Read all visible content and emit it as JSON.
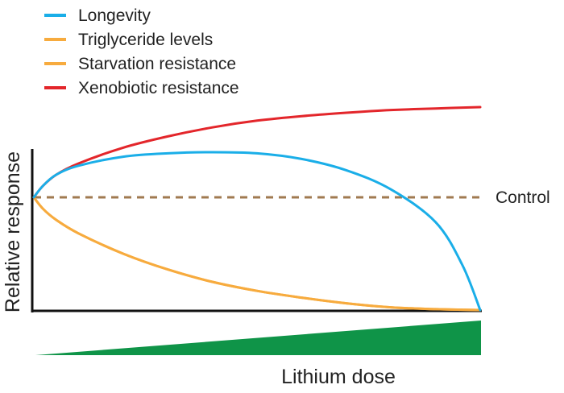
{
  "chart_data": {
    "type": "line",
    "title": "",
    "xlabel": "Lithium dose",
    "ylabel": "Relative response",
    "xlim": [
      0,
      1
    ],
    "ylim": [
      0,
      1
    ],
    "grid": false,
    "legend_position": "top-left",
    "reference_line": {
      "label": "Control",
      "y": 0.5,
      "color": "#a07a50"
    },
    "dose_wedge_color": "#0f9448",
    "series": [
      {
        "name": "Longevity",
        "color": "#1aaee8",
        "points": [
          [
            0,
            0.5
          ],
          [
            0.02,
            0.55
          ],
          [
            0.05,
            0.6
          ],
          [
            0.1,
            0.64
          ],
          [
            0.2,
            0.68
          ],
          [
            0.3,
            0.695
          ],
          [
            0.4,
            0.7
          ],
          [
            0.5,
            0.695
          ],
          [
            0.6,
            0.67
          ],
          [
            0.7,
            0.62
          ],
          [
            0.8,
            0.535
          ],
          [
            0.9,
            0.39
          ],
          [
            0.96,
            0.2
          ],
          [
            1.0,
            0.0
          ]
        ]
      },
      {
        "name": "Triglyceride levels",
        "color": "#f7ab3e",
        "points": [
          [
            0,
            0.5
          ],
          [
            0.02,
            0.45
          ],
          [
            0.05,
            0.4
          ],
          [
            0.1,
            0.34
          ],
          [
            0.2,
            0.25
          ],
          [
            0.3,
            0.18
          ],
          [
            0.4,
            0.125
          ],
          [
            0.5,
            0.085
          ],
          [
            0.6,
            0.055
          ],
          [
            0.7,
            0.03
          ],
          [
            0.8,
            0.012
          ],
          [
            0.9,
            0.004
          ],
          [
            1.0,
            0.0
          ]
        ]
      },
      {
        "name": "Starvation resistance",
        "color": "#f7ab3e",
        "points": [
          [
            0,
            0.5
          ],
          [
            0.02,
            0.45
          ],
          [
            0.05,
            0.4
          ],
          [
            0.1,
            0.34
          ],
          [
            0.2,
            0.25
          ],
          [
            0.3,
            0.18
          ],
          [
            0.4,
            0.125
          ],
          [
            0.5,
            0.085
          ],
          [
            0.6,
            0.055
          ],
          [
            0.7,
            0.03
          ],
          [
            0.8,
            0.012
          ],
          [
            0.9,
            0.004
          ],
          [
            1.0,
            0.0
          ]
        ]
      },
      {
        "name": "Xenobiotic resistance",
        "color": "#e3262b",
        "points": [
          [
            0,
            0.5
          ],
          [
            0.02,
            0.55
          ],
          [
            0.05,
            0.6
          ],
          [
            0.1,
            0.65
          ],
          [
            0.2,
            0.72
          ],
          [
            0.3,
            0.77
          ],
          [
            0.4,
            0.81
          ],
          [
            0.5,
            0.84
          ],
          [
            0.6,
            0.86
          ],
          [
            0.7,
            0.875
          ],
          [
            0.8,
            0.887
          ],
          [
            0.9,
            0.894
          ],
          [
            1.0,
            0.9
          ]
        ]
      }
    ]
  }
}
